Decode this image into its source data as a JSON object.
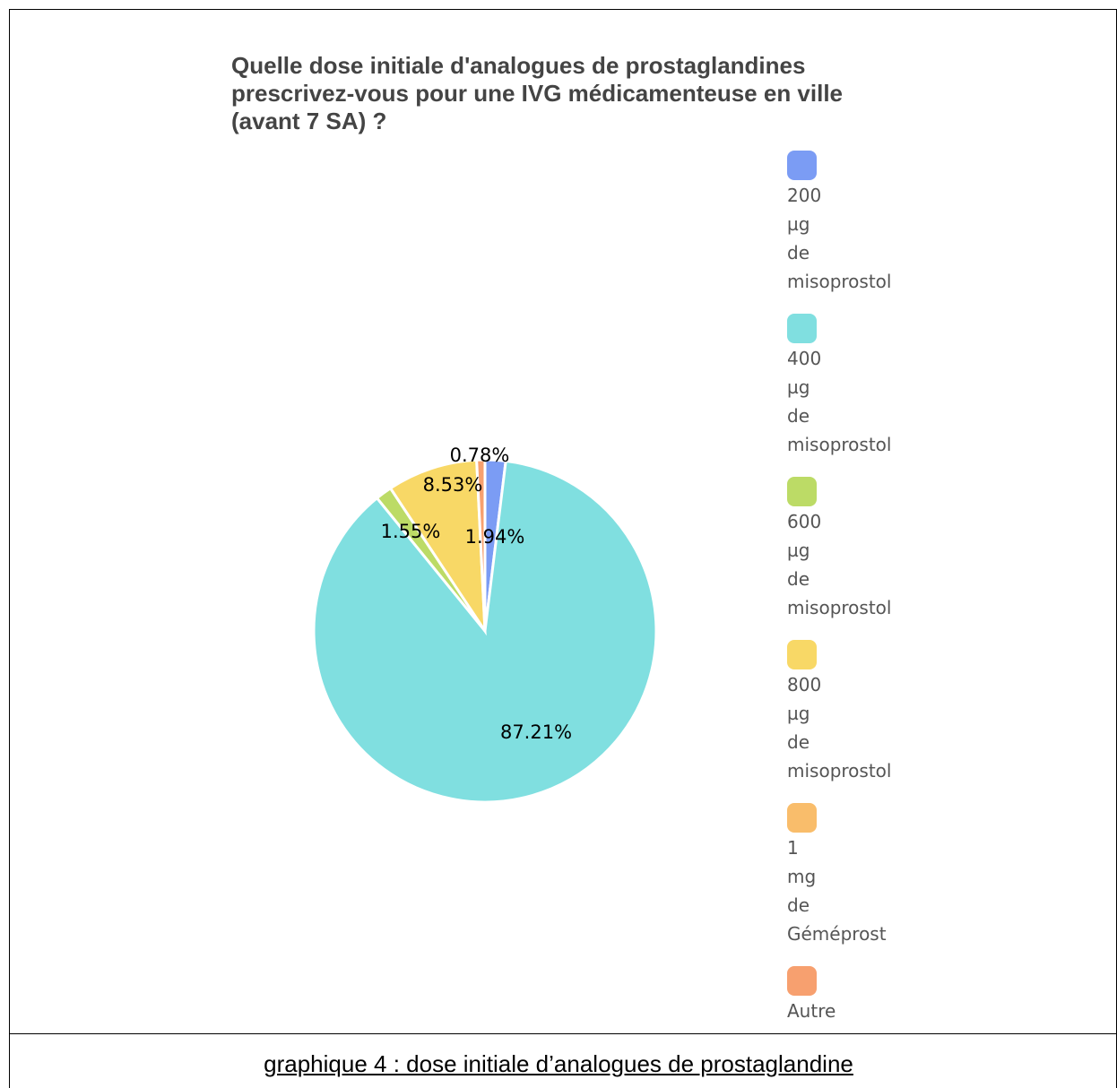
{
  "chart_data": {
    "type": "pie",
    "title": "Quelle dose initiale d'analogues de prostaglandines prescrivez-vous pour une IVG médicamenteuse en ville (avant 7 SA) ?",
    "slices": [
      {
        "label": "200 µg de misoprostol",
        "value": 1.94,
        "display": "1.94%",
        "color": "#7b9cf4"
      },
      {
        "label": "400 µg de misoprostol",
        "value": 87.21,
        "display": "87.21%",
        "color": "#80dfe0"
      },
      {
        "label": "600 µg de misoprostol",
        "value": 1.55,
        "display": "1.55%",
        "color": "#bcdb66"
      },
      {
        "label": "800 µg de misoprostol",
        "value": 8.53,
        "display": "8.53%",
        "color": "#f8d866"
      },
      {
        "label": "1 mg de Géméprost",
        "value": 0,
        "display": "",
        "color": "#f9bd6b"
      },
      {
        "label": "Autre",
        "value": 0.78,
        "display": "0.78%",
        "color": "#f7a06f"
      }
    ],
    "legend_position": "right"
  },
  "caption": "graphique 4 : dose initiale d’analogues de prostaglandine"
}
